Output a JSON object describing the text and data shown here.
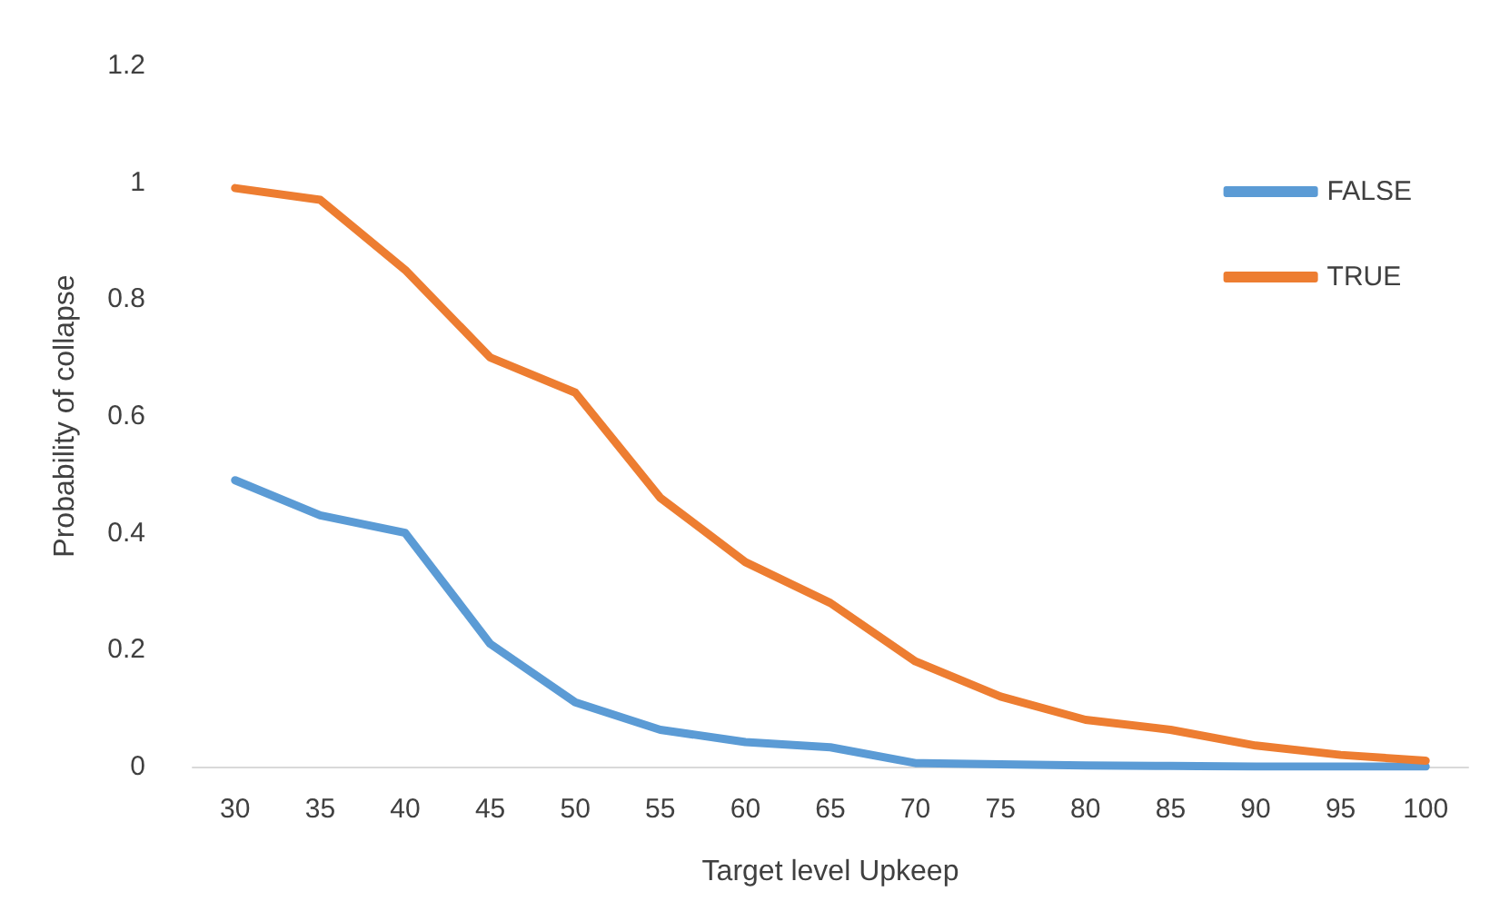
{
  "chart_data": {
    "type": "line",
    "xlabel": "Target level Upkeep",
    "ylabel": "Probability of collapse",
    "categories": [
      "30",
      "35",
      "40",
      "45",
      "50",
      "55",
      "60",
      "65",
      "70",
      "75",
      "80",
      "85",
      "90",
      "95",
      "100"
    ],
    "series": [
      {
        "name": "FALSE",
        "color": "#5b9bd5",
        "values": [
          0.49,
          0.43,
          0.4,
          0.21,
          0.11,
          0.063,
          0.042,
          0.033,
          0.006,
          0.004,
          0.002,
          0.001,
          0,
          0,
          0
        ]
      },
      {
        "name": "TRUE",
        "color": "#ed7d31",
        "values": [
          0.99,
          0.97,
          0.85,
          0.7,
          0.64,
          0.46,
          0.35,
          0.28,
          0.18,
          0.12,
          0.08,
          0.063,
          0.036,
          0.02,
          0.01
        ]
      }
    ],
    "ylim": [
      0,
      1.2
    ],
    "yticks": [
      0,
      0.2,
      0.4,
      0.6,
      0.8,
      1,
      1.2
    ],
    "grid": false,
    "legend": "top right",
    "marker": "none",
    "line_style": "solid"
  }
}
